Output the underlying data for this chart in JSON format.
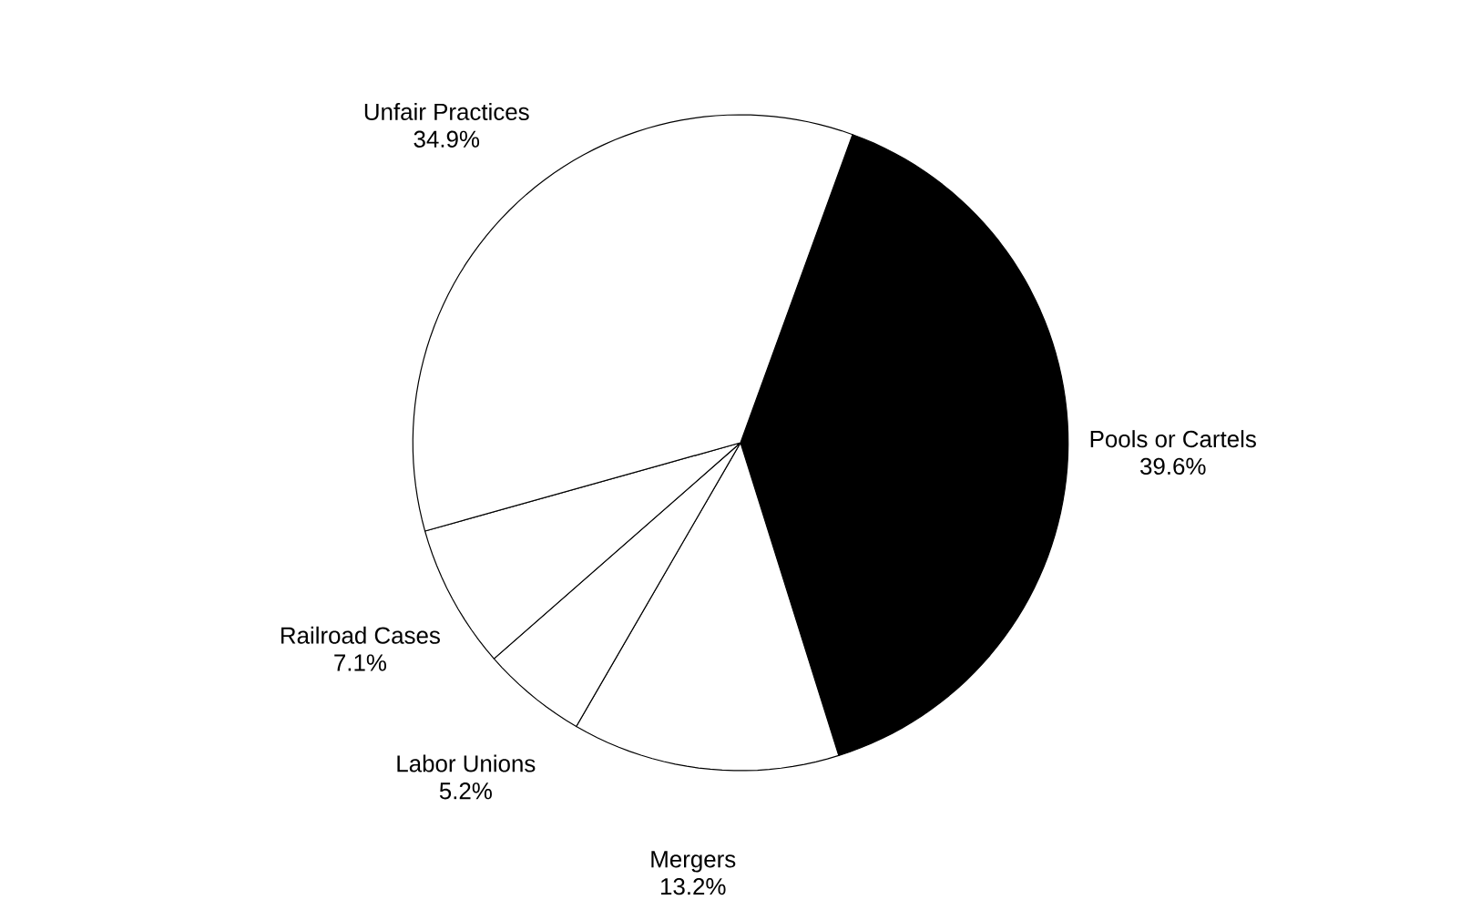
{
  "chart_data": {
    "type": "pie",
    "categories": [
      "Pools or Cartels",
      "Mergers",
      "Labor Unions",
      "Railroad Cases",
      "Unfair Practices"
    ],
    "values": [
      39.6,
      13.2,
      5.2,
      7.1,
      34.9
    ],
    "value_labels": [
      "39.6%",
      "13.2%",
      "5.2%",
      "7.1%",
      "34.9%"
    ],
    "colors": [
      "#000000",
      "#ffffff",
      "#ffffff",
      "#ffffff",
      "#ffffff"
    ]
  }
}
